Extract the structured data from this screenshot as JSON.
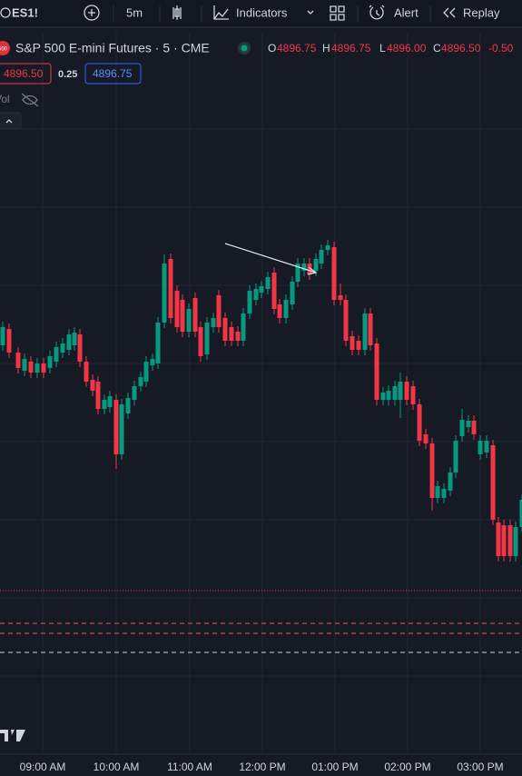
{
  "toolbar": {
    "symbol": "ES1!",
    "interval": "5m",
    "indicators": "Indicators",
    "alert": "Alert",
    "replay": "Replay"
  },
  "legend": {
    "badge": "500",
    "title": "S&P 500 E-mini Futures · 5 · CME",
    "open_label": "O",
    "open": "4896.75",
    "high_label": "H",
    "high": "4896.75",
    "low_label": "L",
    "low": "4896.00",
    "close_label": "C",
    "close": "4896.50",
    "change": "-0.50"
  },
  "price_boxes": {
    "sell": "4896.50",
    "spread": "0.25",
    "buy": "4896.75"
  },
  "volume": {
    "label": "Vol"
  },
  "time_axis": {
    "labels": [
      "09:00 AM",
      "10:00 AM",
      "11:00 AM",
      "12:00 PM",
      "01:00 PM",
      "02:00 PM",
      "03:00 PM"
    ]
  }
}
